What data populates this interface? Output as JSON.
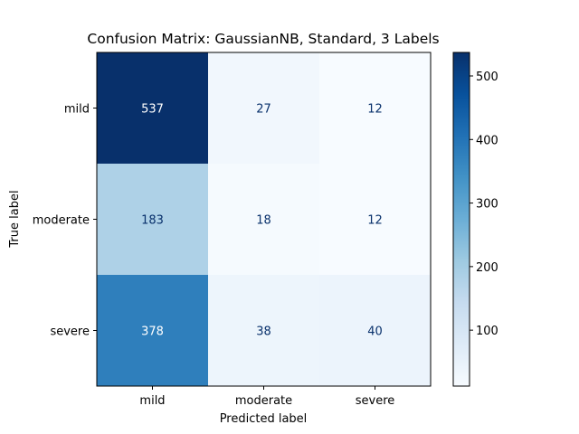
{
  "chart_data": {
    "type": "heatmap",
    "title": "Confusion Matrix: GaussianNB, Standard, 3 Labels",
    "xlabel": "Predicted label",
    "ylabel": "True label",
    "x_categories": [
      "mild",
      "moderate",
      "severe"
    ],
    "y_categories": [
      "mild",
      "moderate",
      "severe"
    ],
    "values": [
      [
        537,
        27,
        12
      ],
      [
        183,
        18,
        12
      ],
      [
        378,
        38,
        40
      ]
    ],
    "colormap": "Blues",
    "colorbar": {
      "min": 12,
      "max": 537,
      "ticks": [
        "100",
        "200",
        "300",
        "400",
        "500"
      ]
    },
    "colors": {
      "low": "#f7fbff",
      "high": "#08306b",
      "text_light": "#ffffff",
      "text_dark": "#08306b"
    }
  }
}
